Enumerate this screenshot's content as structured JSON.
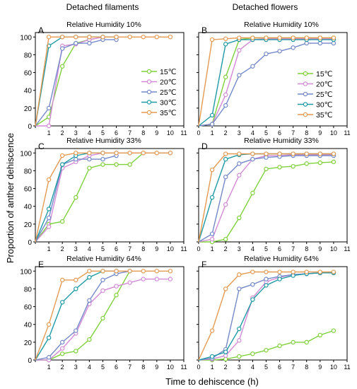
{
  "figure": {
    "col_titles": [
      "Detached filaments",
      "Detached flowers"
    ],
    "ylabel": "Proportion of anther dehiscence",
    "xlabel": "Time to dehiscence (h)"
  },
  "legend": {
    "entries": [
      "15℃",
      "20℃",
      "25℃",
      "30℃",
      "35℃"
    ]
  },
  "colors": {
    "15℃": "#7fd13b",
    "20℃": "#d28ad6",
    "25℃": "#7489c8",
    "30℃": "#1f9aa5",
    "35℃": "#e59a52"
  },
  "chart_data": [
    {
      "type": "line",
      "panel": "A",
      "title": "Relative Humidity 10%",
      "xlim": [
        0,
        11
      ],
      "ylim": [
        0,
        105
      ],
      "xticks": [
        0,
        1,
        2,
        3,
        4,
        5,
        6,
        7,
        8,
        9,
        10,
        11
      ],
      "yticks": [
        0,
        20,
        40,
        60,
        80,
        100
      ],
      "series": [
        {
          "name": "15℃",
          "x": [
            0,
            1,
            2,
            3,
            4,
            5,
            6
          ],
          "y": [
            0,
            10,
            67,
            93,
            97,
            100,
            100
          ]
        },
        {
          "name": "20℃",
          "x": [
            0,
            1,
            2,
            3,
            4,
            5,
            6
          ],
          "y": [
            0,
            0,
            90,
            92,
            97,
            100,
            100
          ]
        },
        {
          "name": "25℃",
          "x": [
            0,
            1,
            2,
            3,
            4,
            5,
            6
          ],
          "y": [
            0,
            20,
            87,
            93,
            93,
            97,
            97
          ]
        },
        {
          "name": "30℃",
          "x": [
            0,
            1,
            2,
            3,
            4,
            5,
            6
          ],
          "y": [
            0,
            90,
            100,
            100,
            100,
            100,
            100
          ]
        },
        {
          "name": "35℃",
          "x": [
            0,
            1,
            2,
            3,
            4,
            5,
            6,
            7,
            8,
            9,
            10
          ],
          "y": [
            0,
            100,
            100,
            100,
            100,
            100,
            100,
            100,
            100,
            100,
            100
          ]
        }
      ]
    },
    {
      "type": "line",
      "panel": "B",
      "title": "Relative Humidity 10%",
      "xlim": [
        0,
        11
      ],
      "ylim": [
        0,
        105
      ],
      "xticks": [
        0,
        1,
        2,
        3,
        4,
        5,
        6,
        7,
        8,
        9,
        10,
        11
      ],
      "yticks": [
        0,
        20,
        40,
        60,
        80,
        100
      ],
      "series": [
        {
          "name": "15℃",
          "x": [
            0,
            1,
            2,
            3,
            4,
            5,
            6,
            7,
            8,
            9,
            10
          ],
          "y": [
            0,
            2,
            55,
            97,
            99,
            99,
            99,
            99,
            99,
            99,
            99
          ]
        },
        {
          "name": "20℃",
          "x": [
            0,
            1,
            2,
            3,
            4,
            5,
            6,
            7,
            8,
            9,
            10
          ],
          "y": [
            0,
            2,
            35,
            85,
            97,
            98,
            98,
            98,
            98,
            98,
            98
          ]
        },
        {
          "name": "25℃",
          "x": [
            0,
            1,
            2,
            3,
            4,
            5,
            6,
            7,
            8,
            9,
            10
          ],
          "y": [
            0,
            2,
            23,
            57,
            67,
            81,
            84,
            88,
            93,
            93,
            93
          ]
        },
        {
          "name": "30℃",
          "x": [
            0,
            1,
            2,
            3,
            4,
            5,
            6,
            7,
            8,
            9,
            10
          ],
          "y": [
            0,
            12,
            92,
            97,
            97,
            97,
            97,
            97,
            97,
            97,
            97
          ]
        },
        {
          "name": "35℃",
          "x": [
            0,
            1,
            2,
            3,
            4,
            5,
            6,
            7,
            8,
            9,
            10
          ],
          "y": [
            0,
            97,
            98,
            99,
            99,
            99,
            99,
            99,
            99,
            99,
            99
          ]
        }
      ]
    },
    {
      "type": "line",
      "panel": "C",
      "title": "Relative Humidity 33%",
      "xlim": [
        0,
        11
      ],
      "ylim": [
        0,
        105
      ],
      "xticks": [
        0,
        1,
        2,
        3,
        4,
        5,
        6,
        7,
        8,
        9,
        10,
        11
      ],
      "yticks": [
        0,
        20,
        40,
        60,
        80,
        100
      ],
      "series": [
        {
          "name": "15℃",
          "x": [
            0,
            1,
            2,
            3,
            4,
            5,
            6,
            7,
            8
          ],
          "y": [
            0,
            20,
            23,
            50,
            83,
            87,
            87,
            87,
            100
          ]
        },
        {
          "name": "20℃",
          "x": [
            0,
            1,
            2,
            3,
            4,
            5,
            6,
            7,
            8,
            9,
            10
          ],
          "y": [
            0,
            17,
            83,
            90,
            97,
            100,
            100,
            100,
            100,
            100,
            100
          ]
        },
        {
          "name": "25℃",
          "x": [
            0,
            1,
            2,
            3,
            4,
            5,
            6
          ],
          "y": [
            0,
            27,
            87,
            93,
            93,
            93,
            97
          ]
        },
        {
          "name": "30℃",
          "x": [
            0,
            1,
            2,
            3,
            4,
            5
          ],
          "y": [
            0,
            37,
            87,
            97,
            100,
            100
          ]
        },
        {
          "name": "35℃",
          "x": [
            0,
            1,
            2,
            3,
            4,
            5,
            6,
            7,
            8,
            9,
            10
          ],
          "y": [
            0,
            70,
            97,
            100,
            100,
            100,
            100,
            100,
            100,
            100,
            100
          ]
        }
      ]
    },
    {
      "type": "line",
      "panel": "D",
      "title": "Relative Humidity 33%",
      "xlim": [
        0,
        11
      ],
      "ylim": [
        0,
        105
      ],
      "xticks": [
        0,
        1,
        2,
        3,
        4,
        5,
        6,
        7,
        8,
        9,
        10,
        11
      ],
      "yticks": [
        0,
        20,
        40,
        60,
        80,
        100
      ],
      "series": [
        {
          "name": "15℃",
          "x": [
            0,
            1,
            2,
            3,
            4,
            5,
            6,
            7,
            8,
            9,
            10
          ],
          "y": [
            0,
            0,
            3,
            27,
            55,
            82,
            84,
            85,
            88,
            89,
            90
          ]
        },
        {
          "name": "20℃",
          "x": [
            0,
            1,
            2,
            3,
            4,
            5,
            6,
            7,
            8,
            9,
            10
          ],
          "y": [
            0,
            3,
            42,
            75,
            93,
            97,
            97,
            98,
            98,
            98,
            98
          ]
        },
        {
          "name": "25℃",
          "x": [
            0,
            1,
            2,
            3,
            4,
            5,
            6,
            7,
            8,
            9,
            10
          ],
          "y": [
            0,
            9,
            73,
            88,
            93,
            95,
            96,
            97,
            97,
            97,
            97
          ]
        },
        {
          "name": "30℃",
          "x": [
            0,
            1,
            2,
            3,
            4,
            5,
            6,
            7,
            8,
            9,
            10
          ],
          "y": [
            0,
            50,
            93,
            98,
            99,
            99,
            99,
            99,
            99,
            99,
            99
          ]
        },
        {
          "name": "35℃",
          "x": [
            0,
            1,
            2,
            3,
            4,
            5,
            6,
            7,
            8,
            9,
            10
          ],
          "y": [
            0,
            81,
            99,
            99,
            99,
            99,
            99,
            99,
            99,
            99,
            99
          ]
        }
      ]
    },
    {
      "type": "line",
      "panel": "E",
      "title": "Relative Humidity 64%",
      "xlim": [
        0,
        11
      ],
      "ylim": [
        0,
        105
      ],
      "xticks": [
        0,
        1,
        2,
        3,
        4,
        5,
        6,
        7,
        8,
        9,
        10,
        11
      ],
      "yticks": [
        0,
        20,
        40,
        60,
        80,
        100
      ],
      "series": [
        {
          "name": "15℃",
          "x": [
            0,
            1,
            2,
            3,
            4,
            5,
            6,
            7
          ],
          "y": [
            0,
            0,
            7,
            10,
            23,
            47,
            73,
            100
          ]
        },
        {
          "name": "20℃",
          "x": [
            0,
            1,
            2,
            3,
            4,
            5,
            6,
            7,
            8,
            9,
            10
          ],
          "y": [
            0,
            0,
            13,
            30,
            63,
            78,
            83,
            87,
            91,
            91,
            91
          ]
        },
        {
          "name": "25℃",
          "x": [
            0,
            1,
            2,
            3,
            4,
            5,
            6,
            7
          ],
          "y": [
            0,
            3,
            20,
            33,
            67,
            90,
            97,
            100
          ]
        },
        {
          "name": "30℃",
          "x": [
            0,
            1,
            2,
            3,
            4,
            5,
            6
          ],
          "y": [
            0,
            25,
            65,
            80,
            93,
            100,
            100
          ]
        },
        {
          "name": "35℃",
          "x": [
            0,
            1,
            2,
            3,
            4,
            5,
            6,
            7,
            8,
            9,
            10
          ],
          "y": [
            0,
            40,
            90,
            90,
            100,
            100,
            100,
            100,
            100,
            100,
            100
          ]
        }
      ]
    },
    {
      "type": "line",
      "panel": "F",
      "title": "Relative Humidity 64%",
      "xlim": [
        0,
        11
      ],
      "ylim": [
        0,
        105
      ],
      "xticks": [
        0,
        1,
        2,
        3,
        4,
        5,
        6,
        7,
        8,
        9,
        10,
        11
      ],
      "yticks": [
        0,
        20,
        40,
        60,
        80,
        100
      ],
      "series": [
        {
          "name": "15℃",
          "x": [
            0,
            1,
            2,
            3,
            4,
            5,
            6,
            7,
            8,
            9,
            10
          ],
          "y": [
            0,
            0,
            1,
            4,
            7,
            11,
            16,
            20,
            20,
            28,
            33
          ]
        },
        {
          "name": "20℃",
          "x": [
            0,
            1,
            2,
            3,
            4,
            5,
            6,
            7,
            8,
            9,
            10
          ],
          "y": [
            0,
            1,
            5,
            22,
            70,
            88,
            93,
            96,
            97,
            98,
            98
          ]
        },
        {
          "name": "25℃",
          "x": [
            0,
            1,
            2,
            3,
            4,
            5,
            6,
            7,
            8,
            9,
            10
          ],
          "y": [
            0,
            2,
            12,
            80,
            85,
            91,
            94,
            96,
            97,
            98,
            98
          ]
        },
        {
          "name": "30℃",
          "x": [
            0,
            1,
            2,
            3,
            4,
            5,
            6,
            7,
            8,
            9,
            10
          ],
          "y": [
            0,
            4,
            9,
            35,
            68,
            84,
            91,
            95,
            97,
            98,
            98
          ]
        },
        {
          "name": "35℃",
          "x": [
            0,
            1,
            2,
            3,
            4,
            5,
            6,
            7,
            8,
            9,
            10
          ],
          "y": [
            0,
            33,
            80,
            96,
            99,
            99,
            99,
            99,
            99,
            99,
            99
          ]
        }
      ]
    }
  ]
}
